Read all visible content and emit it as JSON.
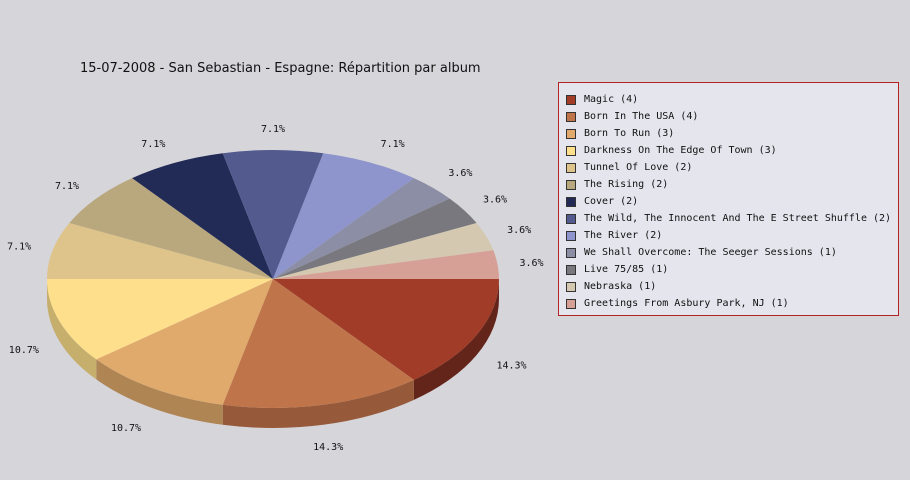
{
  "chart_data": {
    "type": "pie",
    "title": "15-07-2008 - San Sebastian - Espagne:  Répartition par album",
    "legend_position": "right",
    "slices": [
      {
        "name": "Magic (4)",
        "value": 4,
        "percent_label": "14.3%",
        "color": "#a03c28"
      },
      {
        "name": "Born In The USA (4)",
        "value": 4,
        "percent_label": "14.3%",
        "color": "#c0744a"
      },
      {
        "name": "Born To Run (3)",
        "value": 3,
        "percent_label": "10.7%",
        "color": "#e0aa6c"
      },
      {
        "name": "Darkness On The Edge Of Town (3)",
        "value": 3,
        "percent_label": "10.7%",
        "color": "#fedf8c"
      },
      {
        "name": "Tunnel Of Love (2)",
        "value": 2,
        "percent_label": "7.1%",
        "color": "#dec48a"
      },
      {
        "name": "The Rising (2)",
        "value": 2,
        "percent_label": "7.1%",
        "color": "#b9a77e"
      },
      {
        "name": "Cover (2)",
        "value": 2,
        "percent_label": "7.1%",
        "color": "#222a56"
      },
      {
        "name": "The Wild, The Innocent And The E Street Shuffle (2)",
        "value": 2,
        "percent_label": "7.1%",
        "color": "#525a8e"
      },
      {
        "name": "The River (2)",
        "value": 2,
        "percent_label": "7.1%",
        "color": "#8e94cc"
      },
      {
        "name": "We Shall Overcome: The Seeger Sessions (1)",
        "value": 1,
        "percent_label": "3.6%",
        "color": "#8c8ea6"
      },
      {
        "name": "Live 75/85 (1)",
        "value": 1,
        "percent_label": "3.6%",
        "color": "#78787e"
      },
      {
        "name": "Nebraska (1)",
        "value": 1,
        "percent_label": "3.6%",
        "color": "#d4c8b0"
      },
      {
        "name": "Greetings From Asbury Park, NJ (1)",
        "value": 1,
        "percent_label": "3.6%",
        "color": "#d6a096"
      }
    ]
  }
}
